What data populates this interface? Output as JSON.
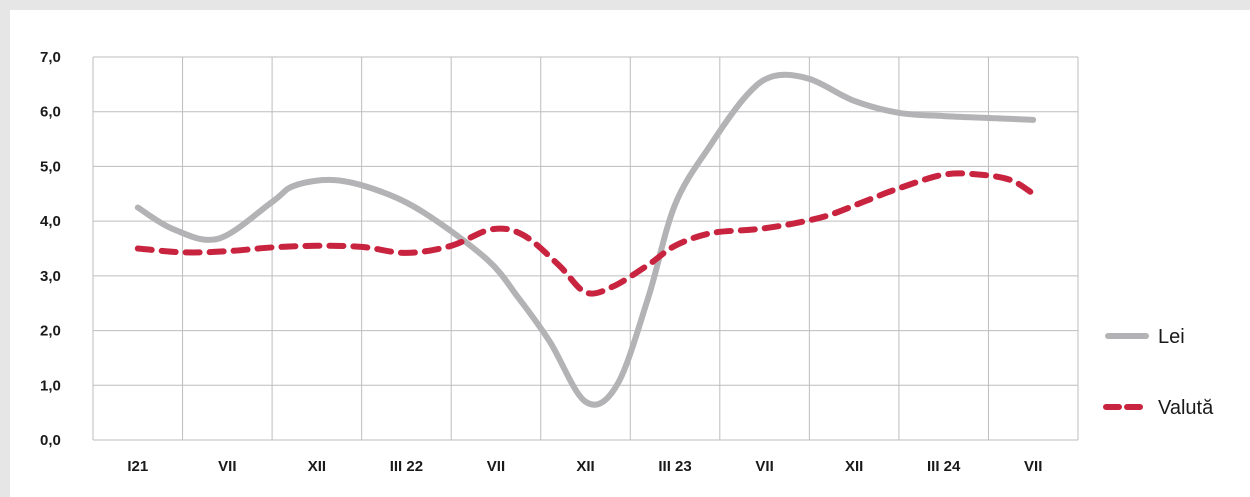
{
  "chart_data": {
    "type": "line",
    "title": "",
    "xlabel": "",
    "ylabel": "",
    "ylim": [
      0,
      7
    ],
    "grid": true,
    "legend_position": "right",
    "categories": [
      "I21",
      "VII",
      "XII",
      "III 22",
      "VII",
      "XII",
      "III 23",
      "VII",
      "XII",
      "III 24",
      "VII"
    ],
    "y_ticks": [
      "0,0",
      "1,0",
      "2,0",
      "3,0",
      "4,0",
      "5,0",
      "6,0",
      "7,0"
    ],
    "series": [
      {
        "name": "Lei",
        "color": "#b3b3b5",
        "style": "solid",
        "x": [
          0,
          0.4,
          0.9,
          1.5,
          1.75,
          2.2,
          2.7,
          3.2,
          3.9,
          4.25,
          4.6,
          5.0,
          5.35,
          5.7,
          6.0,
          6.4,
          6.8,
          7.1,
          7.5,
          8.0,
          8.5,
          9.0,
          9.6,
          10.0
        ],
        "values": [
          4.25,
          3.85,
          3.68,
          4.35,
          4.65,
          4.75,
          4.55,
          4.15,
          3.3,
          2.6,
          1.8,
          0.7,
          1.0,
          2.6,
          4.3,
          5.4,
          6.3,
          6.65,
          6.6,
          6.2,
          5.98,
          5.92,
          5.88,
          5.85
        ]
      },
      {
        "name": "Valută",
        "color": "#c8233f",
        "style": "dashed",
        "x": [
          0,
          0.5,
          1.0,
          1.5,
          2.0,
          2.5,
          3.0,
          3.5,
          3.95,
          4.3,
          4.7,
          5.0,
          5.3,
          5.7,
          6.0,
          6.4,
          6.9,
          7.3,
          7.7,
          8.1,
          8.5,
          9.0,
          9.4,
          9.75,
          10.0
        ],
        "values": [
          3.5,
          3.43,
          3.45,
          3.52,
          3.55,
          3.53,
          3.42,
          3.55,
          3.85,
          3.75,
          3.2,
          2.7,
          2.8,
          3.2,
          3.55,
          3.78,
          3.85,
          3.95,
          4.1,
          4.35,
          4.6,
          4.85,
          4.85,
          4.75,
          4.5
        ]
      }
    ]
  }
}
